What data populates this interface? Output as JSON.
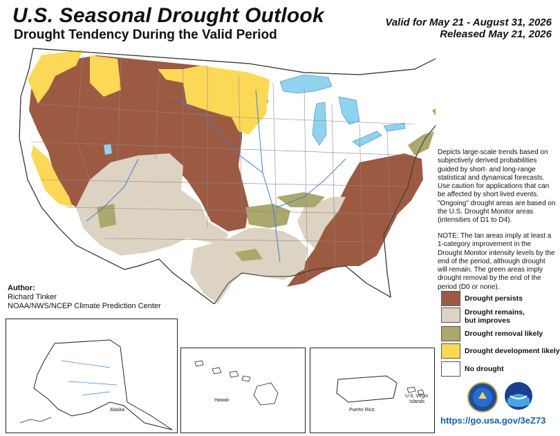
{
  "header": {
    "title": "U.S. Seasonal Drought Outlook",
    "subtitle": "Drought Tendency During the Valid Period",
    "valid": "Valid for May 21 - August 31, 2026",
    "released": "Released May 21, 2026"
  },
  "description": "Depicts large-scale trends based on subjectively derived probabilities guided by short- and long-range statistical and dynamical forecasts. Use caution for applications that can be affected by short lived events. \"Ongoing\" drought areas are based on the U.S. Drought Monitor areas (intensities of D1 to D4).",
  "note": "NOTE: The tan areas imply at least a 1-category improvement in the Drought Monitor intensity levels by the end of the period, although drought will remain. The green areas imply drought removal by the end of the period (D0 or none).",
  "legend": [
    {
      "label": "Drought persists",
      "color": "#9c5a43"
    },
    {
      "label": "Drought remains, but improves",
      "color": "#ddd3c2"
    },
    {
      "label": "Drought removal likely",
      "color": "#aaa86c"
    },
    {
      "label": "Drought development likely",
      "color": "#fcd857"
    },
    {
      "label": "No drought",
      "color": "#ffffff"
    }
  ],
  "author": {
    "heading": "Author:",
    "name": "Richard Tinker",
    "org": "NOAA/NWS/NCEP Climate Prediction Center"
  },
  "insets": {
    "alaska": "Alaska",
    "hawaii": "Hawaii",
    "puerto_rico": "Puerto Rico",
    "virgin_islands_1": "U.S. Virgin",
    "virgin_islands_2": "Islands"
  },
  "url": "https://go.usa.gov/3eZ73",
  "colors": {
    "water": "#8fd3ee",
    "state_border": "#8a8a8a",
    "river": "#3a7fd6"
  }
}
